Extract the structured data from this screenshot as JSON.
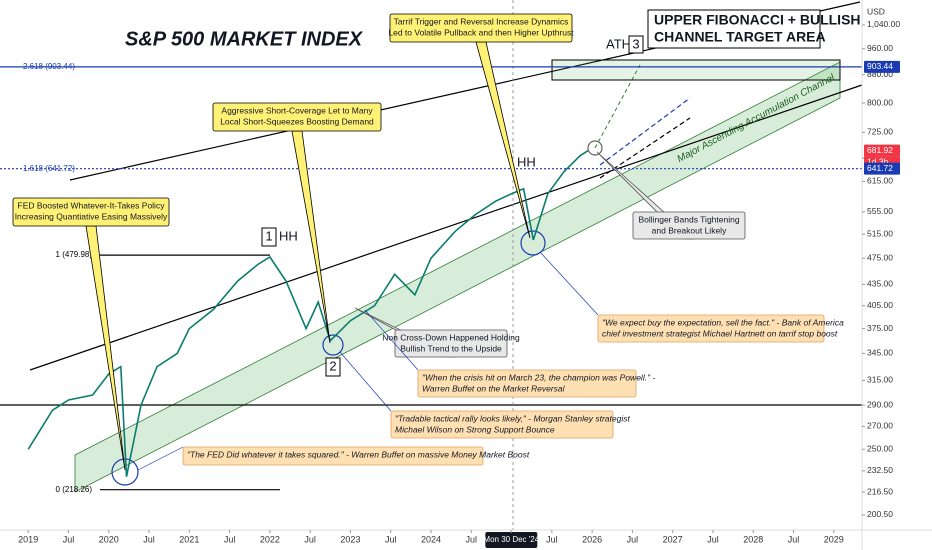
{
  "chart_data": {
    "type": "line",
    "title": "S&P 500 MARKET INDEX",
    "currency": "USD",
    "log_scale": true,
    "color": "#0b7d6e",
    "xlim": [
      2018.65,
      2029.35
    ],
    "ylim": [
      190.6,
      1131
    ],
    "xticks": [
      2019,
      {
        "value": 2019.5,
        "label": "Jul"
      },
      2020,
      {
        "value": 2020.5,
        "label": "Jul"
      },
      2021,
      {
        "value": 2021.5,
        "label": "Jul"
      },
      2022,
      {
        "value": 2022.5,
        "label": "Jul"
      },
      2023,
      {
        "value": 2023.5,
        "label": "Jul"
      },
      2024,
      {
        "value": 2024.5,
        "label": "Jul"
      },
      {
        "value": 2024.997,
        "label": "Mon 30 Dec '24"
      },
      {
        "value": 2025.5,
        "label": "Jul"
      },
      2026,
      {
        "value": 2026.5,
        "label": "Jul"
      },
      2027,
      {
        "value": 2027.5,
        "label": "Jul"
      },
      2028,
      {
        "value": 2028.5,
        "label": "Jul"
      },
      2029
    ],
    "yticks": [
      {
        "value": 1040,
        "label": "1,040.00"
      },
      {
        "value": 960,
        "label": "960.00"
      },
      {
        "value": 880,
        "label": "880.00"
      },
      {
        "value": 800,
        "label": "800.00"
      },
      {
        "value": 725,
        "label": "725.00"
      },
      {
        "value": 665,
        "label": "665.00"
      },
      {
        "value": 615,
        "label": "615.00"
      },
      {
        "value": 555,
        "label": "555.00"
      },
      {
        "value": 515,
        "label": "515.00"
      },
      {
        "value": 475,
        "label": "475.00"
      },
      {
        "value": 435,
        "label": "435.00"
      },
      {
        "value": 405,
        "label": "405.00"
      },
      {
        "value": 375,
        "label": "375.00"
      },
      {
        "value": 345,
        "label": "345.00"
      },
      {
        "value": 315,
        "label": "315.00"
      },
      {
        "value": 290,
        "label": "290.00"
      },
      {
        "value": 270,
        "label": "270.00"
      },
      {
        "value": 250,
        "label": "250.00"
      },
      {
        "value": 232.5,
        "label": "232.50"
      },
      {
        "value": 216.5,
        "label": "216.50"
      },
      {
        "value": 200.5,
        "label": "200.50"
      }
    ],
    "x": [
      2019.0,
      2019.3,
      2019.5,
      2019.8,
      2020.0,
      2020.15,
      2020.22,
      2020.4,
      2020.6,
      2020.85,
      2021.0,
      2021.3,
      2021.6,
      2021.85,
      2022.0,
      2022.2,
      2022.45,
      2022.6,
      2022.75,
      2023.0,
      2023.3,
      2023.55,
      2023.8,
      2024.0,
      2024.3,
      2024.55,
      2024.8,
      2025.0,
      2025.15,
      2025.27,
      2025.45,
      2025.65,
      2025.85,
      2025.95
    ],
    "values": [
      250,
      285,
      295,
      300,
      322,
      330,
      228,
      290,
      330,
      345,
      375,
      400,
      440,
      465,
      477,
      440,
      375,
      410,
      360,
      385,
      405,
      450,
      420,
      475,
      520,
      550,
      575,
      590,
      600,
      505,
      590,
      635,
      670,
      682
    ],
    "fib_levels": [
      {
        "value": 903.44,
        "label": "2.618 (903.44)"
      },
      {
        "value": 641.72,
        "label": "1.618 (641.72)"
      },
      {
        "value": 479.98,
        "label": "1 (479.98)"
      },
      {
        "value": 218.26,
        "label": "0 (218.26)"
      }
    ],
    "price_badges": [
      903.44,
      681.92,
      641.72
    ],
    "countdown": "1d 3h",
    "target_heading": [
      "UPPER FIBONACCI + BULLISH",
      "CHANNEL TARGET AREA"
    ],
    "ath": "ATH",
    "wave_labels": [
      "1",
      "2",
      "3"
    ],
    "hh_labels": [
      "HH",
      "HH"
    ],
    "channel_label": "Major Ascending Accumulation Channel",
    "callouts": [
      {
        "lines": [
          "FED Boosted Whatever-It-Takes Policy",
          "Increasing Quantiative Easing Massively"
        ]
      },
      {
        "lines": [
          "Aggressive Short-Coverage Let to Many",
          "Local Short-Squeezes Boosting Demand"
        ]
      },
      {
        "lines": [
          "Tarrif Trigger and Reversal Increase Dynamics",
          "Led to Volatile Pullback and then Higher Upthrust"
        ]
      },
      {
        "lines": [
          "Non Cross-Down Happened Holding",
          "Bullish Trend to the Upside"
        ]
      },
      {
        "lines": [
          "Bollinger Bands Tightening",
          "and Breakout Likely"
        ]
      }
    ],
    "quotes": [
      {
        "lines": [
          "\"The FED Did whatever it takes squared.\" - Warren Buffet on massive Money Market Boost"
        ]
      },
      {
        "lines": [
          "\"When the crisis hit on March 23, the champion was Powell.\" -",
          "Warren Buffet on the Market Reversal"
        ]
      },
      {
        "lines": [
          "\"Tradable tactical rally looks likely,\" - Morgan Stanley strategist",
          "Michael Wilson on Strong Support Bounce"
        ]
      },
      {
        "lines": [
          "\"We expect buy the expectation, sell the fact.\" - Bank of America",
          "chief investment strategist Michael Hartnett on tarrif stop boost"
        ]
      }
    ]
  }
}
